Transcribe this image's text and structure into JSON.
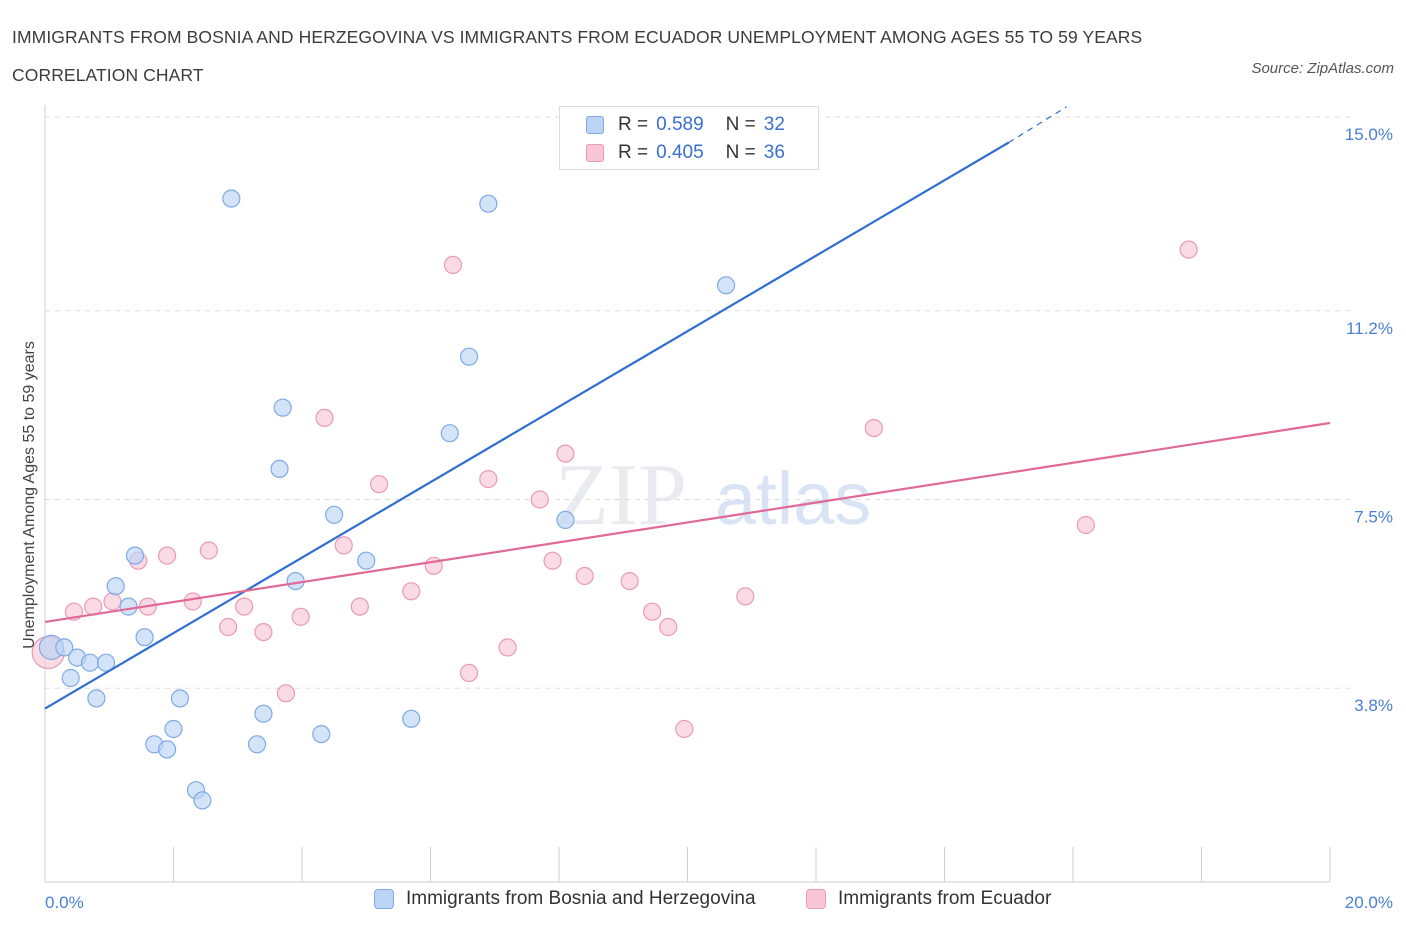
{
  "title": "IMMIGRANTS FROM BOSNIA AND HERZEGOVINA VS IMMIGRANTS FROM ECUADOR UNEMPLOYMENT AMONG AGES 55 TO 59 YEARS CORRELATION CHART",
  "source": "Source: ZipAtlas.com",
  "watermark": {
    "zip": "ZIP",
    "atlas": "atlas"
  },
  "legend": {
    "rows": [
      {
        "r_label": "R =",
        "r_value": "0.589",
        "n_label": "N =",
        "n_value": "32"
      },
      {
        "r_label": "R =",
        "r_value": "0.405",
        "n_label": "N =",
        "n_value": "36"
      }
    ]
  },
  "colors": {
    "blue_fill": "#bcd4f5",
    "blue_stroke": "#7eaae6",
    "blue_line": "#2f6fd0",
    "pink_fill": "#f8c6d5",
    "pink_stroke": "#eb9ab4",
    "pink_line": "#e06a95",
    "grid": "#dddddd",
    "tick_text": "#4a7fd4"
  },
  "chart_data": {
    "type": "scatter",
    "xlabel": "",
    "ylabel": "Unemployment Among Ages 55 to 59 years",
    "xlim": [
      0,
      20
    ],
    "ylim": [
      0,
      15
    ],
    "x_tick_labels": {
      "min": "0.0%",
      "max": "20.0%"
    },
    "y_ticks": [
      {
        "value": 3.8,
        "label": "3.8%"
      },
      {
        "value": 7.5,
        "label": "7.5%"
      },
      {
        "value": 11.2,
        "label": "11.2%"
      },
      {
        "value": 15.0,
        "label": "15.0%"
      }
    ],
    "grid": true,
    "legend_position": "bottom",
    "series": [
      {
        "name": "Immigrants from Bosnia and Herzegovina",
        "color": "#bcd4f5",
        "trend": {
          "x": [
            0,
            15
          ],
          "y": [
            3.4,
            14.5
          ],
          "dashed_extension_x": [
            15,
            15.9
          ],
          "dashed_extension_y": [
            14.5,
            15.2
          ]
        },
        "points": [
          [
            0.1,
            4.6
          ],
          [
            0.3,
            4.6
          ],
          [
            0.4,
            4.0
          ],
          [
            0.5,
            4.4
          ],
          [
            0.7,
            4.3
          ],
          [
            0.8,
            3.6
          ],
          [
            0.95,
            4.3
          ],
          [
            1.1,
            5.8
          ],
          [
            1.3,
            5.4
          ],
          [
            1.4,
            6.4
          ],
          [
            1.55,
            4.8
          ],
          [
            1.7,
            2.7
          ],
          [
            1.9,
            2.6
          ],
          [
            2.0,
            3.0
          ],
          [
            2.1,
            3.6
          ],
          [
            2.35,
            1.8
          ],
          [
            2.45,
            1.6
          ],
          [
            2.9,
            13.4
          ],
          [
            3.3,
            2.7
          ],
          [
            3.4,
            3.3
          ],
          [
            3.65,
            8.1
          ],
          [
            3.7,
            9.3
          ],
          [
            3.9,
            5.9
          ],
          [
            4.3,
            2.9
          ],
          [
            4.5,
            7.2
          ],
          [
            5.0,
            6.3
          ],
          [
            5.7,
            3.2
          ],
          [
            6.3,
            8.8
          ],
          [
            6.6,
            10.3
          ],
          [
            6.9,
            13.3
          ],
          [
            8.1,
            7.1
          ],
          [
            10.6,
            11.7
          ]
        ]
      },
      {
        "name": "Immigrants from Ecuador",
        "color": "#f8c6d5",
        "trend": {
          "x": [
            0,
            20
          ],
          "y": [
            5.1,
            9.0
          ]
        },
        "points": [
          [
            0.05,
            4.5
          ],
          [
            0.45,
            5.3
          ],
          [
            0.75,
            5.4
          ],
          [
            1.05,
            5.5
          ],
          [
            1.45,
            6.3
          ],
          [
            1.6,
            5.4
          ],
          [
            1.9,
            6.4
          ],
          [
            2.3,
            5.5
          ],
          [
            2.55,
            6.5
          ],
          [
            2.85,
            5.0
          ],
          [
            3.1,
            5.4
          ],
          [
            3.4,
            4.9
          ],
          [
            3.75,
            3.7
          ],
          [
            3.98,
            5.2
          ],
          [
            4.35,
            9.1
          ],
          [
            4.65,
            6.6
          ],
          [
            4.9,
            5.4
          ],
          [
            5.2,
            7.8
          ],
          [
            5.7,
            5.7
          ],
          [
            6.05,
            6.2
          ],
          [
            6.35,
            12.1
          ],
          [
            6.6,
            4.1
          ],
          [
            6.9,
            7.9
          ],
          [
            7.2,
            4.6
          ],
          [
            7.7,
            7.5
          ],
          [
            7.9,
            6.3
          ],
          [
            8.1,
            8.4
          ],
          [
            8.4,
            6.0
          ],
          [
            9.1,
            5.9
          ],
          [
            9.45,
            5.3
          ],
          [
            9.7,
            5.0
          ],
          [
            9.95,
            3.0
          ],
          [
            10.9,
            5.6
          ],
          [
            12.9,
            8.9
          ],
          [
            16.2,
            7.0
          ],
          [
            17.8,
            12.4
          ]
        ]
      }
    ]
  }
}
